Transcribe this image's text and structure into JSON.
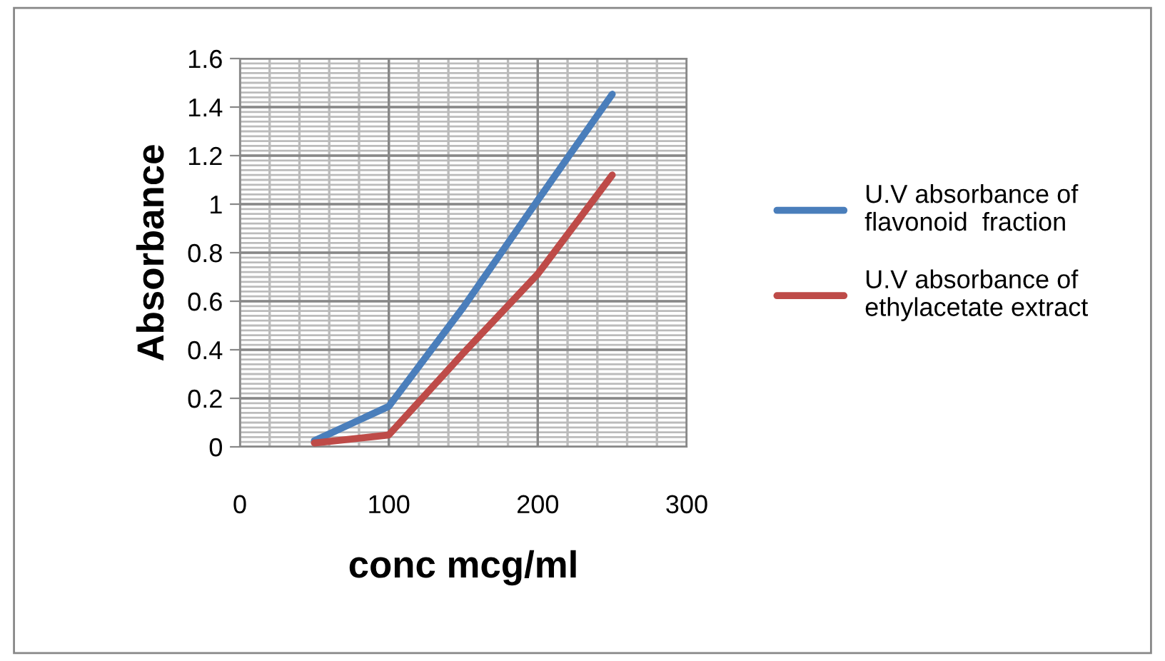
{
  "chart_data": {
    "type": "line",
    "xlabel": "conc mcg/ml",
    "ylabel": "Absorbance",
    "x": [
      50,
      100,
      150,
      200,
      250
    ],
    "series": [
      {
        "name": "U.V absorbance of flavonoid  fraction",
        "color": "#4a7ebb",
        "values": [
          0.025,
          0.167,
          0.575,
          1.016,
          1.453
        ]
      },
      {
        "name": "U.V absorbance of ethylacetate extract",
        "color": "#be4b48",
        "values": [
          0.016,
          0.049,
          0.386,
          0.712,
          1.12
        ]
      }
    ],
    "xlim": [
      0,
      300
    ],
    "xticks": [
      0,
      100,
      200,
      300
    ],
    "ylim": [
      0,
      1.6
    ],
    "yticks": [
      0,
      0.2,
      0.4,
      0.6,
      0.8,
      1,
      1.2,
      1.4,
      1.6
    ],
    "grid": true,
    "legend": "right",
    "marker": "none",
    "line_style": "solid"
  }
}
